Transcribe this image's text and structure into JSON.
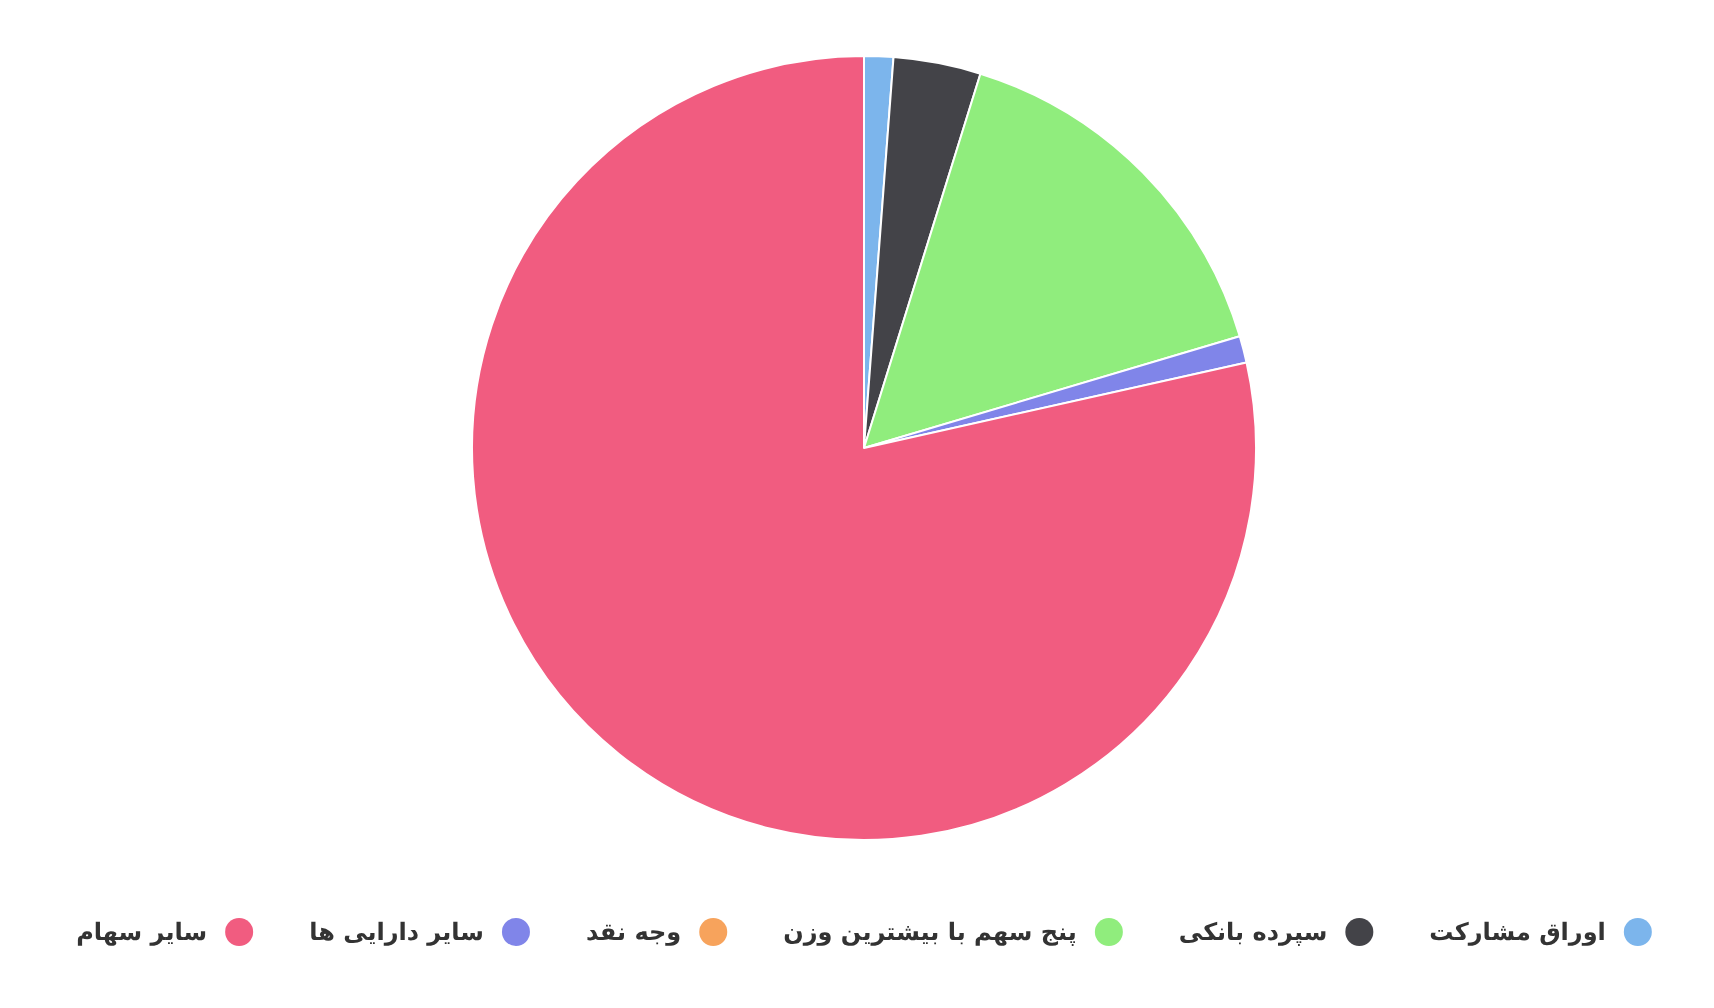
{
  "chart_data": {
    "type": "pie",
    "categories": [
      "اوراق مشارکت",
      "سپرده بانکی",
      "پنج سهم با بیشترین وزن",
      "وجه نقد",
      "سایر دارایی ها",
      "سایر سهام"
    ],
    "values": [
      1.2,
      3.6,
      15.6,
      0,
      1.1,
      78.5
    ],
    "colors": [
      "#7cb5ec",
      "#434348",
      "#90ed7d",
      "#f7a35c",
      "#8085e9",
      "#f15c80"
    ],
    "legend": "bottom"
  }
}
